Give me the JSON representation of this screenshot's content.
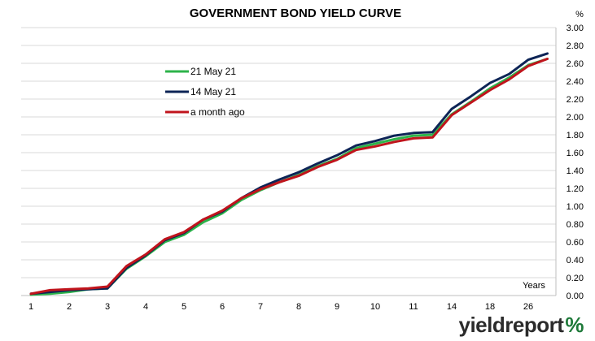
{
  "chart_data": {
    "type": "line",
    "title": "GOVERNMENT BOND YIELD CURVE",
    "unit_label": "%",
    "xlabel": "Years",
    "x_tick_labels": [
      "1",
      "2",
      "3",
      "4",
      "5",
      "6",
      "7",
      "8",
      "9",
      "10",
      "11",
      "14",
      "18",
      "26"
    ],
    "ylim": [
      0,
      3.0
    ],
    "y_tick_labels": [
      "0.00",
      "0.20",
      "0.40",
      "0.60",
      "0.80",
      "1.00",
      "1.20",
      "1.40",
      "1.60",
      "1.80",
      "2.00",
      "2.20",
      "2.40",
      "2.60",
      "2.80",
      "3.00"
    ],
    "grid": "horizontal",
    "legend_position": "top-left",
    "series": [
      {
        "name": "21 May 21",
        "color": "#2db34a",
        "values": [
          0.01,
          0.02,
          0.04,
          0.07,
          0.08,
          0.3,
          0.44,
          0.6,
          0.68,
          0.82,
          0.92,
          1.07,
          1.18,
          1.27,
          1.35,
          1.45,
          1.53,
          1.65,
          1.7,
          1.75,
          1.79,
          1.8,
          2.03,
          2.17,
          2.32,
          2.44,
          2.58,
          2.65
        ]
      },
      {
        "name": "14 May 21",
        "color": "#0d2456",
        "values": [
          0.02,
          0.04,
          0.06,
          0.07,
          0.08,
          0.31,
          0.45,
          0.62,
          0.7,
          0.85,
          0.94,
          1.09,
          1.21,
          1.3,
          1.38,
          1.48,
          1.57,
          1.68,
          1.73,
          1.79,
          1.82,
          1.83,
          2.09,
          2.23,
          2.38,
          2.48,
          2.64,
          2.71
        ]
      },
      {
        "name": "a month ago",
        "color": "#c0141c",
        "values": [
          0.02,
          0.06,
          0.07,
          0.08,
          0.1,
          0.33,
          0.46,
          0.63,
          0.71,
          0.85,
          0.95,
          1.09,
          1.19,
          1.27,
          1.34,
          1.44,
          1.52,
          1.63,
          1.67,
          1.72,
          1.76,
          1.77,
          2.02,
          2.16,
          2.3,
          2.42,
          2.57,
          2.65
        ]
      }
    ]
  },
  "logo": {
    "text": "yieldreport",
    "symbol": "%"
  }
}
